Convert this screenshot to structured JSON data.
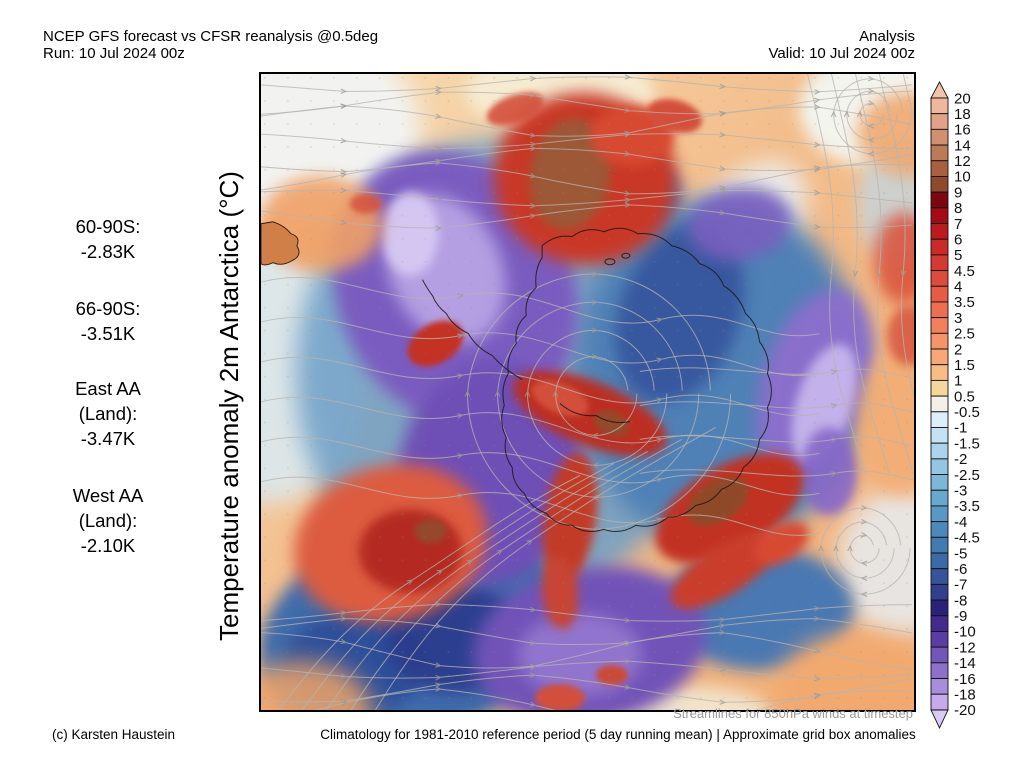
{
  "header": {
    "title_line1": "NCEP GFS forecast vs CFSR reanalysis @0.5deg",
    "title_line2": "Run: 10 Jul 2024 00z",
    "right_line1": "Analysis",
    "right_line2": "Valid: 10 Jul 2024 00z"
  },
  "axis_label": "Temperature anomaly 2m Antarctica (°C)",
  "stats": [
    {
      "lines": [
        "60-90S:",
        "-2.83K"
      ]
    },
    {
      "lines": [
        "66-90S:",
        "-3.51K"
      ]
    },
    {
      "lines": [
        "East AA",
        "(Land):",
        "-3.47K"
      ]
    },
    {
      "lines": [
        "West AA",
        "(Land):",
        "-2.10K"
      ]
    }
  ],
  "footer": {
    "credit": "(c) Karsten Haustein",
    "streamlines_note": "Streamlines for 850hPa winds at timestep",
    "climatology_note": "Climatology for 1981-2010 reference period (5 day running mean) | Approximate grid box anomalies"
  },
  "colorbar": {
    "tick_labels": [
      "20",
      "18",
      "16",
      "14",
      "12",
      "10",
      "9",
      "8",
      "7",
      "6",
      "5",
      "4.5",
      "4",
      "3.5",
      "3",
      "2.5",
      "2",
      "1.5",
      "1",
      "0.5",
      "-0.5",
      "-1",
      "-1.5",
      "-2",
      "-2.5",
      "-3",
      "-3.5",
      "-4",
      "-4.5",
      "-5",
      "-6",
      "-7",
      "-8",
      "-9",
      "-10",
      "-12",
      "-14",
      "-16",
      "-18",
      "-20"
    ],
    "segment_colors": [
      "#efb79e",
      "#e1a288",
      "#d19072",
      "#bd7a58",
      "#a86040",
      "#8f4a2c",
      "#7d0710",
      "#a30b16",
      "#bb1a1f",
      "#ca2b28",
      "#d43934",
      "#dd4a3e",
      "#e65a46",
      "#ee6e50",
      "#f2805d",
      "#f59468",
      "#f7a876",
      "#f8bd85",
      "#f4d79c",
      "#f2f0e8",
      "#dceef9",
      "#c4e2f3",
      "#aad4ec",
      "#92c6e2",
      "#7cb7d8",
      "#68a8ce",
      "#5798c4",
      "#4c89ba",
      "#437aaf",
      "#3c6aa5",
      "#37549a",
      "#323e8e",
      "#2a2178",
      "#432a8d",
      "#5a3da3",
      "#7456b9",
      "#8e70cb",
      "#a98ddd",
      "#c5aaec"
    ],
    "arrow_top_color": "#f2c3a9",
    "arrow_bottom_color": "#dacbf5"
  },
  "map": {
    "description": "South-polar stereographic 2m temperature anomaly field with 850hPa wind streamlines",
    "palette": {
      "warm_extreme": "#7d0710",
      "warm": "#c93827",
      "neutral": "#f2f0e8",
      "cold": "#4f81b6",
      "cold_extreme": "#2a2178",
      "purple": "#7a5cc0",
      "streamline": "#b7b4b0",
      "background_warm": "#f2bd8c"
    }
  }
}
